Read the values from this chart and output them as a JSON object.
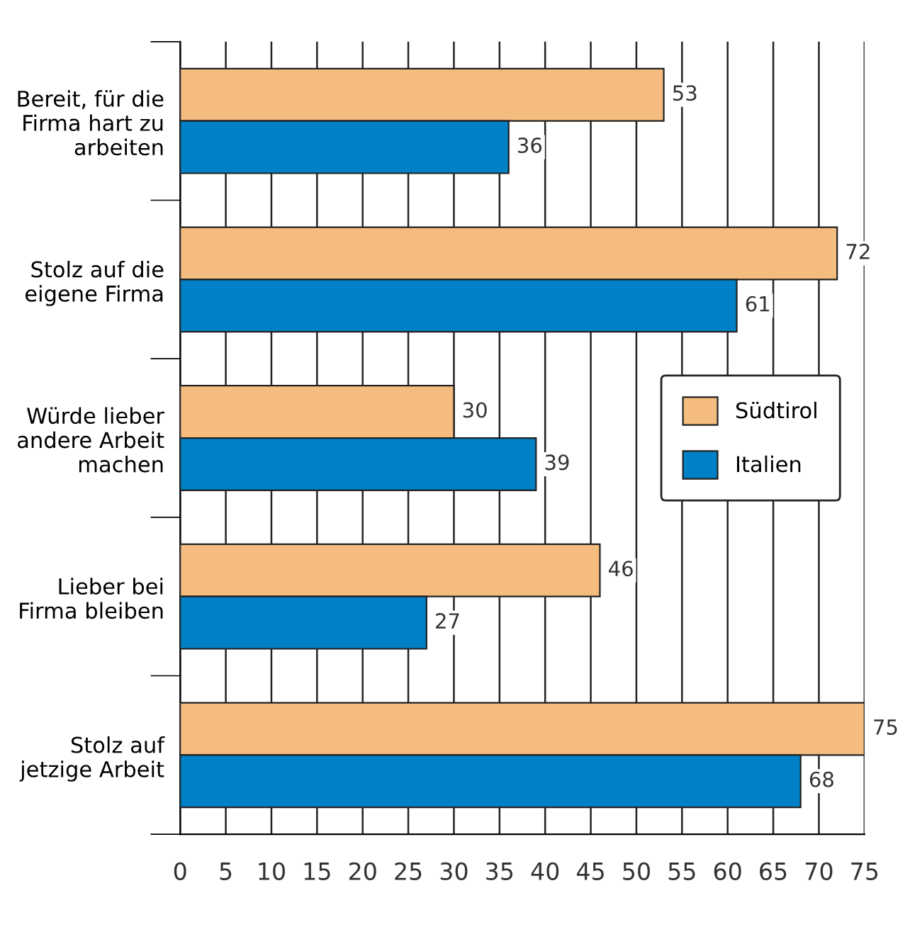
{
  "chart_data": {
    "type": "bar",
    "orientation": "horizontal",
    "categories": [
      "Bereit, für die\nFirma hart zu\narbeiten",
      "Stolz auf die\neigene Firma",
      "Würde lieber\nandere Arbeit\nmachen",
      "Lieber bei\nFirma bleiben",
      "Stolz auf\njetzige Arbeit"
    ],
    "series": [
      {
        "name": "Südtirol",
        "color": "#f5bc80",
        "values": [
          53,
          72,
          30,
          46,
          75
        ]
      },
      {
        "name": "Italien",
        "color": "#0080c6",
        "values": [
          36,
          61,
          39,
          27,
          68
        ]
      }
    ],
    "xlim": [
      0,
      75
    ],
    "xticks": [
      0,
      5,
      10,
      15,
      20,
      25,
      30,
      35,
      40,
      45,
      50,
      55,
      60,
      65,
      70,
      75
    ],
    "grid": "x",
    "legend": "right",
    "data_labels": true
  }
}
